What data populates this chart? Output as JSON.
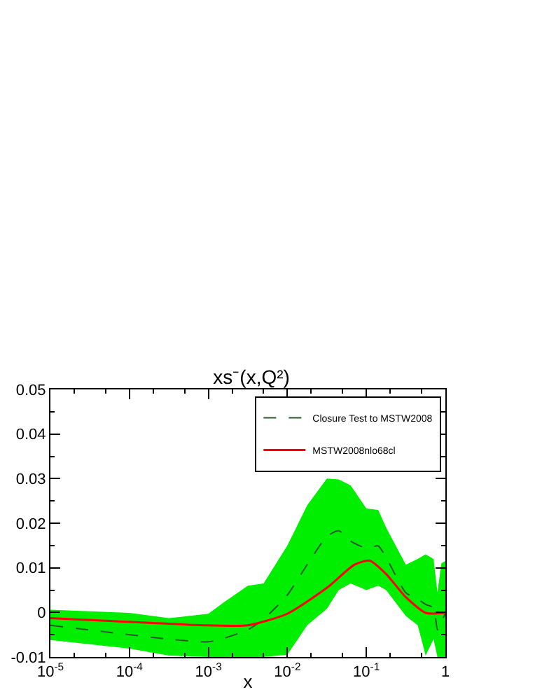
{
  "chart_data": {
    "type": "line",
    "title": "xs⁻(x,Q²)",
    "xlabel": "x",
    "log": "x",
    "xlim": [
      1e-05,
      1
    ],
    "xticks": [
      {
        "value": 1e-05,
        "label": "10$^{-5}$"
      },
      {
        "value": 0.0001,
        "label": "10$^{-4}$"
      },
      {
        "value": 0.001,
        "label": "10$^{-3}$"
      },
      {
        "value": 0.01,
        "label": "10$^{-2}$"
      },
      {
        "value": 0.1,
        "label": "10$^{-1}$"
      },
      1
    ],
    "ylim": [
      -0.01,
      0.05
    ],
    "yticks": [
      -0.01,
      0,
      0.01,
      0.02,
      0.03,
      0.04,
      0.05
    ],
    "grid": false,
    "legend": "top right",
    "series": [
      {
        "name": "Closure Test to MSTW2008",
        "color": "#2a5a2a",
        "line_style": "dashed",
        "x": [
          1e-05,
          0.0001,
          0.000316,
          0.001,
          0.00158,
          0.00316,
          0.005,
          0.01,
          0.0178,
          0.0316,
          0.0447,
          0.0631,
          0.1,
          0.141,
          0.178,
          0.316,
          0.447,
          0.562,
          0.708,
          0.794,
          0.891,
          1
        ],
        "values": [
          -0.0029,
          -0.005,
          -0.006,
          -0.0066,
          -0.0058,
          -0.0039,
          -0.0015,
          0.0039,
          0.0107,
          0.017,
          0.0183,
          0.016,
          0.0144,
          0.0149,
          0.0123,
          0.0044,
          0.003,
          0.0018,
          0.001,
          -0.0039,
          -0.002,
          -0.0003
        ],
        "upper": [
          0.0006,
          -0.0001,
          -0.0013,
          -0.0003,
          0.0023,
          0.006,
          0.0065,
          0.015,
          0.024,
          0.03,
          0.0298,
          0.0285,
          0.0233,
          0.023,
          0.019,
          0.0107,
          0.012,
          0.013,
          0.012,
          0.0045,
          0.011,
          0.0115
        ],
        "lower": [
          -0.0062,
          -0.0081,
          -0.0097,
          -0.01,
          -0.01,
          -0.01,
          -0.01,
          -0.0095,
          -0.0029,
          0.0008,
          0.005,
          0.0065,
          0.005,
          0.006,
          0.005,
          -0.0008,
          -0.0029,
          -0.0097,
          -0.006,
          -0.01,
          -0.01,
          -0.01
        ]
      },
      {
        "name": "MSTW2008nlo68cl",
        "color": "#ff0000",
        "line_style": "solid",
        "x": [
          1e-05,
          0.001,
          0.00316,
          0.01,
          0.0316,
          0.0708,
          0.11,
          0.178,
          0.316,
          0.562,
          1
        ],
        "values": [
          -0.0013,
          -0.0029,
          -0.0029,
          -0.0003,
          0.0055,
          0.0107,
          0.0116,
          0.0086,
          0.0034,
          -0.0001,
          -0.0001
        ]
      }
    ]
  }
}
